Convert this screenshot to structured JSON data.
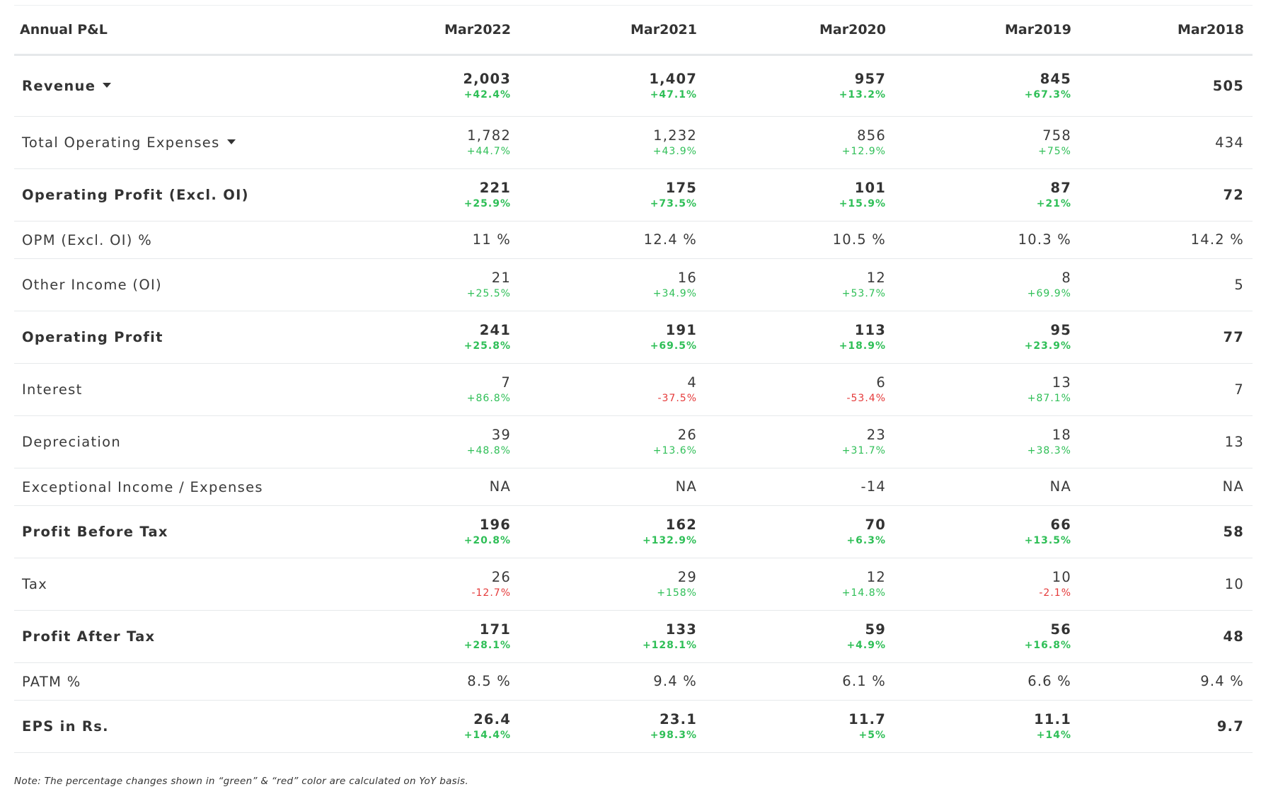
{
  "table": {
    "title": "Annual P&L",
    "columns": [
      "Mar2022",
      "Mar2021",
      "Mar2020",
      "Mar2019",
      "Mar2018"
    ],
    "rows": [
      {
        "label": "Revenue",
        "bold": true,
        "dropdown": true,
        "values": [
          "2,003",
          "1,407",
          "957",
          "845",
          "505"
        ],
        "changes": [
          "+42.4%",
          "+47.1%",
          "+13.2%",
          "+67.3%"
        ]
      },
      {
        "label": "Total Operating Expenses",
        "bold": false,
        "dropdown": true,
        "values": [
          "1,782",
          "1,232",
          "856",
          "758",
          "434"
        ],
        "changes": [
          "+44.7%",
          "+43.9%",
          "+12.9%",
          "+75%"
        ]
      },
      {
        "label": "Operating Profit (Excl. OI)",
        "bold": true,
        "values": [
          "221",
          "175",
          "101",
          "87",
          "72"
        ],
        "changes": [
          "+25.9%",
          "+73.5%",
          "+15.9%",
          "+21%"
        ]
      },
      {
        "label": "OPM (Excl. OI) %",
        "bold": false,
        "values": [
          "11 %",
          "12.4 %",
          "10.5 %",
          "10.3 %",
          "14.2 %"
        ],
        "changes": []
      },
      {
        "label": "Other Income (OI)",
        "bold": false,
        "values": [
          "21",
          "16",
          "12",
          "8",
          "5"
        ],
        "changes": [
          "+25.5%",
          "+34.9%",
          "+53.7%",
          "+69.9%"
        ]
      },
      {
        "label": "Operating Profit",
        "bold": true,
        "values": [
          "241",
          "191",
          "113",
          "95",
          "77"
        ],
        "changes": [
          "+25.8%",
          "+69.5%",
          "+18.9%",
          "+23.9%"
        ]
      },
      {
        "label": "Interest",
        "bold": false,
        "values": [
          "7",
          "4",
          "6",
          "13",
          "7"
        ],
        "changes": [
          "+86.8%",
          "-37.5%",
          "-53.4%",
          "+87.1%"
        ]
      },
      {
        "label": "Depreciation",
        "bold": false,
        "values": [
          "39",
          "26",
          "23",
          "18",
          "13"
        ],
        "changes": [
          "+48.8%",
          "+13.6%",
          "+31.7%",
          "+38.3%"
        ]
      },
      {
        "label": "Exceptional Income / Expenses",
        "bold": false,
        "values": [
          "NA",
          "NA",
          "-14",
          "NA",
          "NA"
        ],
        "changes": []
      },
      {
        "label": "Profit Before Tax",
        "bold": true,
        "values": [
          "196",
          "162",
          "70",
          "66",
          "58"
        ],
        "changes": [
          "+20.8%",
          "+132.9%",
          "+6.3%",
          "+13.5%"
        ]
      },
      {
        "label": "Tax",
        "bold": false,
        "values": [
          "26",
          "29",
          "12",
          "10",
          "10"
        ],
        "changes": [
          "-12.7%",
          "+158%",
          "+14.8%",
          "-2.1%"
        ]
      },
      {
        "label": "Profit After Tax",
        "bold": true,
        "values": [
          "171",
          "133",
          "59",
          "56",
          "48"
        ],
        "changes": [
          "+28.1%",
          "+128.1%",
          "+4.9%",
          "+16.8%"
        ]
      },
      {
        "label": "PATM %",
        "bold": false,
        "values": [
          "8.5 %",
          "9.4 %",
          "6.1 %",
          "6.6 %",
          "9.4 %"
        ],
        "changes": []
      },
      {
        "label": "EPS in Rs.",
        "bold": true,
        "values": [
          "26.4",
          "23.1",
          "11.7",
          "11.1",
          "9.7"
        ],
        "changes": [
          "+14.4%",
          "+98.3%",
          "+5%",
          "+14%"
        ]
      }
    ]
  },
  "colors": {
    "positive": "#2fbf57",
    "negative": "#e53a3a",
    "text": "#333333",
    "border": "#e6e9eb"
  },
  "note": "Note: The percentage changes shown in “green” & “red” color are calculated on YoY basis."
}
